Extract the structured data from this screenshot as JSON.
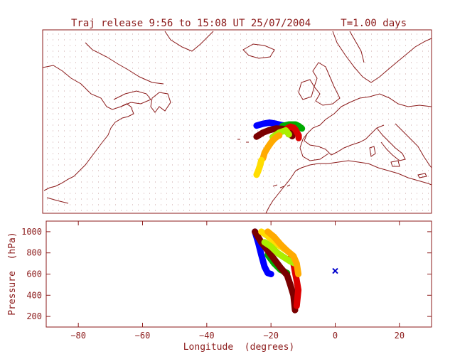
{
  "title": "Traj release 9:56 to 15:08 UT 25/07/2004     T=1.00 days",
  "colors": {
    "axis": "#8b1a1a",
    "coast": "#8b1a1a",
    "grid_dots": "#c8a0a0",
    "background": "#ffffff",
    "marker": "#0000cc"
  },
  "map_panel": {
    "lon_range": [
      -90,
      30
    ],
    "lat_range": [
      25,
      75
    ],
    "grid": "dotted",
    "coastlines": true
  },
  "profile_panel": {
    "xlabel": "Longitude  (degrees)",
    "ylabel": "Pressure  (hPa)",
    "xlim": [
      -90,
      30
    ],
    "ylim": [
      1100,
      100
    ],
    "xticks": [
      -80,
      -60,
      -40,
      -20,
      0,
      20
    ],
    "xtick_labels": [
      "−80",
      "−60",
      "−40",
      "−20",
      "0",
      "20"
    ],
    "yticks": [
      200,
      400,
      600,
      800,
      1000
    ],
    "ytick_labels": [
      "200",
      "400",
      "600",
      "800",
      "1000"
    ]
  },
  "chart_data": [
    {
      "type": "line",
      "panel": "map",
      "x_axis": "longitude",
      "y_axis": "latitude",
      "series": [
        {
          "color": "#0000ff",
          "lon": [
            -24,
            -22,
            -20,
            -18,
            -16,
            -14
          ],
          "lat": [
            48.9,
            49.4,
            49.7,
            49.4,
            49.0,
            48.8
          ]
        },
        {
          "color": "#00aa00",
          "lon": [
            -16,
            -14,
            -12,
            -11,
            -10
          ],
          "lat": [
            48.8,
            49.2,
            49.2,
            48.8,
            48.1
          ]
        },
        {
          "color": "#7a0000",
          "lon": [
            -24,
            -22,
            -20,
            -18,
            -16,
            -14,
            -13,
            -13
          ],
          "lat": [
            45.9,
            47.0,
            47.7,
            48.1,
            48.0,
            47.8,
            47.0,
            46.0
          ]
        },
        {
          "color": "#dd0000",
          "lon": [
            -14.5,
            -13.5,
            -12.5,
            -12,
            -11.5,
            -11,
            -11
          ],
          "lat": [
            48.2,
            48.6,
            48.3,
            47.8,
            47.0,
            46.2,
            45.5
          ]
        },
        {
          "color": "#aaee00",
          "lon": [
            -19,
            -17,
            -15,
            -14
          ],
          "lat": [
            45.8,
            47.0,
            47.6,
            46.5
          ]
        },
        {
          "color": "#ffaa00",
          "lon": [
            -22,
            -21.5,
            -20.5,
            -19.5,
            -18.5,
            -17.5,
            -17
          ],
          "lat": [
            40.0,
            41.5,
            43.0,
            44.3,
            45.3,
            46.0,
            46.2
          ]
        },
        {
          "color": "#ffdd00",
          "lon": [
            -24,
            -23.5,
            -23,
            -22.5
          ],
          "lat": [
            35.5,
            36.5,
            37.8,
            39.5
          ]
        }
      ]
    },
    {
      "type": "line",
      "panel": "vertical",
      "x_axis": "longitude",
      "y_axis": "pressure_hPa",
      "series": [
        {
          "color": "#0000ff",
          "lon": [
            -25,
            -24,
            -23,
            -22,
            -21,
            -20
          ],
          "p": [
            1000,
            900,
            780,
            670,
            610,
            600
          ]
        },
        {
          "color": "#00aa00",
          "lon": [
            -21,
            -19,
            -17,
            -15
          ],
          "p": [
            780,
            700,
            640,
            610
          ]
        },
        {
          "color": "#7a0000",
          "lon": [
            -25,
            -23,
            -21,
            -19,
            -17,
            -15,
            -14,
            -13,
            -12.5
          ],
          "p": [
            1000,
            900,
            820,
            740,
            660,
            590,
            500,
            400,
            260
          ]
        },
        {
          "color": "#dd0000",
          "lon": [
            -14,
            -13,
            -12.5,
            -12,
            -11.5,
            -12
          ],
          "p": [
            750,
            700,
            620,
            540,
            450,
            300
          ]
        },
        {
          "color": "#ffdd00",
          "lon": [
            -23,
            -21,
            -19,
            -17,
            -15
          ],
          "p": [
            1000,
            960,
            900,
            860,
            820
          ]
        },
        {
          "color": "#aaee00",
          "lon": [
            -22,
            -20,
            -18,
            -16,
            -14,
            -12.5
          ],
          "p": [
            900,
            860,
            800,
            760,
            720,
            700
          ]
        },
        {
          "color": "#ffaa00",
          "lon": [
            -21,
            -19,
            -17,
            -15,
            -13,
            -12,
            -11.5
          ],
          "p": [
            1000,
            950,
            880,
            820,
            770,
            700,
            600
          ]
        }
      ],
      "markers": [
        {
          "lon": 0,
          "p": 630,
          "symbol": "x",
          "color": "#0000cc"
        }
      ]
    }
  ]
}
